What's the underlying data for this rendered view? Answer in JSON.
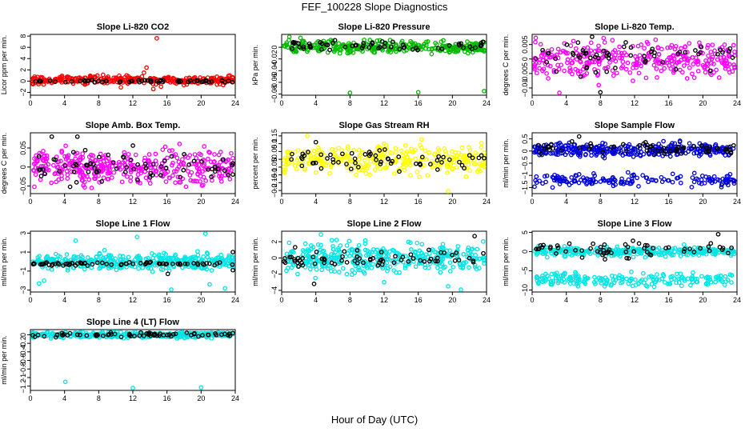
{
  "figure": {
    "title": "FEF_100228  Slope Diagnostics",
    "xlabel": "Hour of Day (UTC)"
  },
  "chart_data": [
    {
      "type": "scatter",
      "title": "Slope Li-820 CO2",
      "ylabel": "Licor ppm per min.",
      "xlim": [
        0,
        24
      ],
      "ylim": [
        -2.5,
        8.3
      ],
      "yticks": [
        -2,
        0,
        2,
        4,
        6,
        8
      ],
      "xticks": [
        0,
        4,
        8,
        12,
        16,
        20,
        24
      ],
      "series": [
        {
          "color": "#ff0000",
          "n": 330,
          "center": 0.2,
          "spread": 0.35,
          "outliers": [
            [
              13.3,
              1.5
            ],
            [
              13.6,
              2.4
            ],
            [
              14.8,
              7.6
            ],
            [
              14.4,
              -1.4
            ],
            [
              15.3,
              -1.0
            ],
            [
              10.6,
              -1.1
            ]
          ]
        },
        {
          "color": "#000000",
          "n": 60,
          "center": 0.0,
          "spread": 0.12
        }
      ]
    },
    {
      "type": "scatter",
      "title": "Slope Li-820 Pressure",
      "ylabel": "kPa per min.",
      "xlim": [
        0,
        24
      ],
      "ylim": [
        -0.082,
        0.022
      ],
      "yticks": [
        -0.08,
        -0.06,
        -0.04,
        -0.02,
        0.0
      ],
      "xticks": [
        0,
        4,
        8,
        12,
        16,
        20,
        24
      ],
      "series": [
        {
          "color": "#00bb00",
          "n": 330,
          "center": 0.0,
          "spread": 0.005,
          "outliers": [
            [
              0.9,
              0.018
            ],
            [
              8.0,
              -0.078
            ],
            [
              16.0,
              -0.077
            ],
            [
              23.9,
              -0.075
            ],
            [
              11.5,
              0.012
            ],
            [
              2.2,
              0.016
            ]
          ]
        },
        {
          "color": "#000000",
          "n": 60,
          "center": 0.003,
          "spread": 0.004
        }
      ]
    },
    {
      "type": "scatter",
      "title": "Slope Li-820 Temp.",
      "ylabel": "degrees C per min.",
      "xlim": [
        0,
        24
      ],
      "ylim": [
        -0.0125,
        0.0085
      ],
      "yticks": [
        -0.01,
        -0.005,
        0.0,
        0.005
      ],
      "xticks": [
        0,
        4,
        8,
        12,
        16,
        20,
        24
      ],
      "series": [
        {
          "color": "#ff00ff",
          "n": 330,
          "center": 0.0,
          "spread": 0.0032,
          "outliers": [
            [
              3.2,
              -0.012
            ],
            [
              9.4,
              0.0065
            ],
            [
              7.8,
              -0.009
            ]
          ]
        },
        {
          "color": "#000000",
          "n": 60,
          "center": 0.0005,
          "spread": 0.0025,
          "outliers": [
            [
              8.0,
              -0.0115
            ]
          ]
        }
      ]
    },
    {
      "type": "scatter",
      "title": "Slope Amb. Box Temp.",
      "ylabel": "degrees C per min.",
      "xlim": [
        0,
        24
      ],
      "ylim": [
        -0.07,
        0.09
      ],
      "yticks": [
        -0.05,
        0.0,
        0.05
      ],
      "xticks": [
        0,
        4,
        8,
        12,
        16,
        20,
        24
      ],
      "series": [
        {
          "color": "#ff00ff",
          "n": 380,
          "center": 0.0,
          "spread": 0.022
        },
        {
          "color": "#000000",
          "n": 70,
          "center": 0.0,
          "spread": 0.02,
          "outliers": [
            [
              2.5,
              0.08
            ],
            [
              5.5,
              0.08
            ]
          ]
        }
      ]
    },
    {
      "type": "scatter",
      "title": "Slope Gas Stream RH",
      "ylabel": "percent per min.",
      "xlim": [
        0,
        24
      ],
      "ylim": [
        -0.22,
        0.17
      ],
      "yticks": [
        -0.2,
        -0.15,
        -0.1,
        -0.05,
        0.0,
        0.05,
        0.1,
        0.15
      ],
      "xticks": [
        0,
        4,
        8,
        12,
        16,
        20,
        24
      ],
      "series": [
        {
          "color": "#ffff00",
          "n": 330,
          "center": 0.0,
          "spread": 0.045,
          "outliers": [
            [
              19.5,
              -0.21
            ],
            [
              3.0,
              0.15
            ]
          ]
        },
        {
          "color": "#000000",
          "n": 60,
          "center": 0.0,
          "spread": 0.035,
          "outliers": [
            [
              4.0,
              0.11
            ]
          ]
        }
      ]
    },
    {
      "type": "scatter",
      "title": "Slope Sample Flow",
      "ylabel": "ml/min per min.",
      "xlim": [
        0,
        24
      ],
      "ylim": [
        -1.75,
        0.75
      ],
      "yticks": [
        -1.5,
        -1.0,
        -0.5,
        0.0,
        0.5
      ],
      "xticks": [
        0,
        4,
        8,
        12,
        16,
        20,
        24
      ],
      "series": [
        {
          "color": "#0000dd",
          "n": 340,
          "center": 0.05,
          "spread": 0.13
        },
        {
          "color": "#0000dd",
          "n": 160,
          "center": -1.2,
          "spread": 0.13
        },
        {
          "color": "#000000",
          "n": 60,
          "center": 0.1,
          "spread": 0.12,
          "outliers": [
            [
              5.5,
              0.6
            ]
          ]
        }
      ]
    },
    {
      "type": "scatter",
      "title": "Slope Line 1 Flow",
      "ylabel": "ml/min per min.",
      "xlim": [
        0,
        24
      ],
      "ylim": [
        -3.2,
        3.2
      ],
      "yticks": [
        -3,
        -1,
        1,
        3
      ],
      "xticks": [
        0,
        4,
        8,
        12,
        16,
        20,
        24
      ],
      "series": [
        {
          "color": "#00e5e5",
          "n": 380,
          "center": 0.0,
          "spread": 0.4,
          "outliers": [
            [
              1.0,
              -2.3
            ],
            [
              1.6,
              -2.0
            ],
            [
              5.3,
              2.2
            ],
            [
              16.5,
              -3.0
            ],
            [
              21.0,
              -2.4
            ],
            [
              22.8,
              -2.8
            ],
            [
              20.5,
              3.0
            ],
            [
              12.5,
              2.6
            ]
          ]
        },
        {
          "color": "#000000",
          "n": 70,
          "center": -0.25,
          "spread": 0.1,
          "outliers": [
            [
              16.1,
              -1.3
            ],
            [
              23.8,
              -0.9
            ],
            [
              23.8,
              1.0
            ]
          ]
        }
      ]
    },
    {
      "type": "scatter",
      "title": "Slope Line 2 Flow",
      "ylabel": "ml/min per min.",
      "xlim": [
        0,
        24
      ],
      "ylim": [
        -4.2,
        3.3
      ],
      "yticks": [
        -4,
        -2,
        0,
        2
      ],
      "xticks": [
        0,
        4,
        8,
        12,
        16,
        20,
        24
      ],
      "series": [
        {
          "color": "#00e5e5",
          "n": 380,
          "center": 0.0,
          "spread": 0.9,
          "outliers": [
            [
              4.6,
              2.9
            ],
            [
              21.0,
              -4.0
            ],
            [
              12.0,
              -3.0
            ],
            [
              19.5,
              -3.5
            ]
          ]
        },
        {
          "color": "#000000",
          "n": 70,
          "center": 0.0,
          "spread": 0.45,
          "outliers": [
            [
              3.8,
              -3.2
            ],
            [
              22.6,
              2.7
            ]
          ]
        }
      ]
    },
    {
      "type": "scatter",
      "title": "Slope Line 3 Flow",
      "ylabel": "ml/min per min.",
      "xlim": [
        0,
        24
      ],
      "ylim": [
        -10.5,
        5.3
      ],
      "yticks": [
        -10,
        -5,
        0,
        5
      ],
      "xticks": [
        0,
        4,
        8,
        12,
        16,
        20,
        24
      ],
      "series": [
        {
          "color": "#00e5e5",
          "n": 300,
          "center": 0.0,
          "spread": 0.6
        },
        {
          "color": "#00e5e5",
          "n": 200,
          "center": -7.3,
          "spread": 0.9
        },
        {
          "color": "#000000",
          "n": 60,
          "center": 0.5,
          "spread": 1.0,
          "outliers": [
            [
              21.8,
              4.5
            ]
          ]
        }
      ]
    },
    {
      "type": "scatter",
      "title": "Slope Line 4 (LT) Flow",
      "ylabel": "ml/min per min.",
      "xlim": [
        0,
        24
      ],
      "ylim": [
        -1.3,
        0.12
      ],
      "yticks": [
        -1.2,
        -1.0,
        -0.8,
        -0.6,
        -0.4,
        -0.2,
        0.0
      ],
      "xticks": [
        0,
        4,
        8,
        12,
        16,
        20,
        24
      ],
      "series": [
        {
          "color": "#00e5e5",
          "n": 360,
          "center": 0.0,
          "spread": 0.035,
          "outliers": [
            [
              4.1,
              -1.1
            ],
            [
              12.0,
              -1.25
            ],
            [
              20.0,
              -1.23
            ]
          ]
        },
        {
          "color": "#000000",
          "n": 70,
          "center": 0.0,
          "spread": 0.025
        }
      ]
    }
  ]
}
